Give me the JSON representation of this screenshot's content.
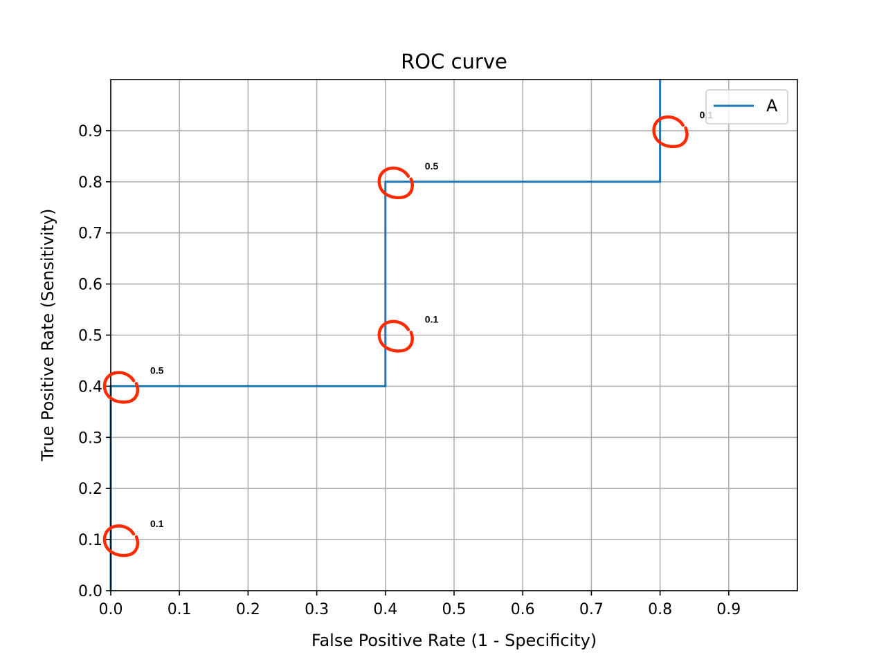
{
  "chart_data": {
    "type": "line",
    "title": "ROC curve",
    "xlabel": "False Positive Rate (1 - Specificity)",
    "ylabel": "True Positive Rate (Sensitivity)",
    "xlim": [
      0,
      1
    ],
    "ylim": [
      0,
      1
    ],
    "grid": true,
    "legend_position": "top-right",
    "x_ticks": [
      "0.0",
      "0.1",
      "0.2",
      "0.3",
      "0.4",
      "0.5",
      "0.6",
      "0.7",
      "0.8",
      "0.9"
    ],
    "y_ticks": [
      "0.0",
      "0.1",
      "0.2",
      "0.3",
      "0.4",
      "0.5",
      "0.6",
      "0.7",
      "0.8",
      "0.9"
    ],
    "series": [
      {
        "name": "A",
        "color": "#1f77b4",
        "x": [
          0.0,
          0.0,
          0.4,
          0.4,
          0.8,
          0.8
        ],
        "y": [
          0.0,
          0.4,
          0.4,
          0.8,
          0.8,
          1.0
        ]
      }
    ],
    "annotations": [
      {
        "text": "0.1",
        "x": 0.0,
        "y": 0.1
      },
      {
        "text": "0.5",
        "x": 0.0,
        "y": 0.4
      },
      {
        "text": "0.1",
        "x": 0.4,
        "y": 0.5
      },
      {
        "text": "0.5",
        "x": 0.4,
        "y": 0.8
      },
      {
        "text": "0.1",
        "x": 0.8,
        "y": 0.9
      }
    ],
    "annotation_color": "#ff2a00"
  }
}
